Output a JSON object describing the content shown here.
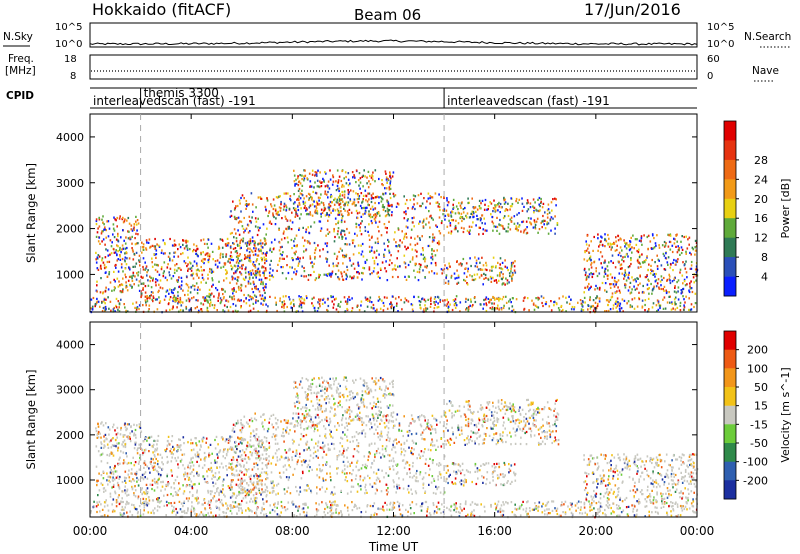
{
  "header": {
    "station": "Hokkaido (fitACF)",
    "beam": "Beam 06",
    "date": "17/Jun/2016"
  },
  "side_labels": {
    "nsky": "N.Sky",
    "freq_line1": "Freq.",
    "freq_line2": "[MHz]",
    "cpid": "CPID",
    "nsearch": "N.Search",
    "nave": "Nave"
  },
  "noise_panel": {
    "left_ticks": [
      "10^5",
      "10^0"
    ],
    "right_ticks": [
      "10^5",
      "10^0"
    ]
  },
  "freq_panel": {
    "left_ticks": [
      "18",
      "8"
    ],
    "right_ticks": [
      "60",
      "0"
    ]
  },
  "cpid": [
    {
      "label": "interleavedscan (fast) -191",
      "start_hour": 0
    },
    {
      "label": "themis 3300",
      "start_hour": 2
    },
    {
      "label": "interleavedscan (fast) -191",
      "start_hour": 14
    }
  ],
  "chart_data": [
    {
      "type": "heatmap",
      "title": "",
      "xlabel": "",
      "ylabel": "Slant Range [km]",
      "xlim": [
        0,
        24
      ],
      "ylim": [
        180,
        4500
      ],
      "yticks": [
        1000,
        2000,
        3000,
        4000
      ],
      "mode_change_hours": [
        2,
        14
      ],
      "colorbar": {
        "label": "Power [dB]",
        "ticks": [
          "4",
          "8",
          "12",
          "16",
          "20",
          "24",
          "28"
        ],
        "colors": [
          "#0a1fff",
          "#2a4fb8",
          "#2f7a55",
          "#5faa3a",
          "#e8d012",
          "#f29a17",
          "#ee6a14",
          "#e63310",
          "#e00000"
        ]
      },
      "regions": [
        {
          "x0": 0.2,
          "x1": 2.0,
          "y0": 600,
          "y1": 2300
        },
        {
          "x0": 2.0,
          "x1": 7.0,
          "y0": 450,
          "y1": 1800
        },
        {
          "x0": 5.5,
          "x1": 14.0,
          "y0": 900,
          "y1": 2800
        },
        {
          "x0": 8.0,
          "x1": 12.0,
          "y0": 2300,
          "y1": 3300
        },
        {
          "x0": 14.0,
          "x1": 18.5,
          "y0": 1900,
          "y1": 2700
        },
        {
          "x0": 14.0,
          "x1": 16.8,
          "y0": 800,
          "y1": 1400
        },
        {
          "x0": 19.5,
          "x1": 24.0,
          "y0": 600,
          "y1": 1900
        },
        {
          "x0": 0.0,
          "x1": 24.0,
          "y0": 200,
          "y1": 550
        }
      ]
    },
    {
      "type": "heatmap",
      "title": "",
      "xlabel": "Time UT",
      "ylabel": "Slant Range [km]",
      "xlim": [
        0,
        24
      ],
      "ylim": [
        180,
        4500
      ],
      "yticks": [
        1000,
        2000,
        3000,
        4000
      ],
      "xticks": [
        "00:00",
        "04:00",
        "08:00",
        "12:00",
        "16:00",
        "20:00",
        "00:00"
      ],
      "mode_change_hours": [
        2,
        14
      ],
      "colorbar": {
        "label": "Velocity [m s^-1]",
        "ticks": [
          "200",
          "100",
          "50",
          "15",
          "-15",
          "-50",
          "-100",
          "-200"
        ],
        "colors": [
          "#1c2fa0",
          "#2f5fb0",
          "#2f8a4a",
          "#6ccc3a",
          "#c8c8c0",
          "#f2c218",
          "#f2961a",
          "#ee5a14",
          "#e00000"
        ]
      },
      "regions": [
        {
          "x0": 0.2,
          "x1": 2.0,
          "y0": 500,
          "y1": 2300
        },
        {
          "x0": 2.0,
          "x1": 7.0,
          "y0": 500,
          "y1": 2000
        },
        {
          "x0": 5.5,
          "x1": 14.0,
          "y0": 700,
          "y1": 2500
        },
        {
          "x0": 8.0,
          "x1": 12.0,
          "y0": 2300,
          "y1": 3300
        },
        {
          "x0": 14.0,
          "x1": 18.5,
          "y0": 1800,
          "y1": 2800
        },
        {
          "x0": 14.0,
          "x1": 16.8,
          "y0": 900,
          "y1": 1400
        },
        {
          "x0": 19.5,
          "x1": 24.0,
          "y0": 500,
          "y1": 1600
        },
        {
          "x0": 0.0,
          "x1": 24.0,
          "y0": 200,
          "y1": 550
        }
      ]
    }
  ]
}
